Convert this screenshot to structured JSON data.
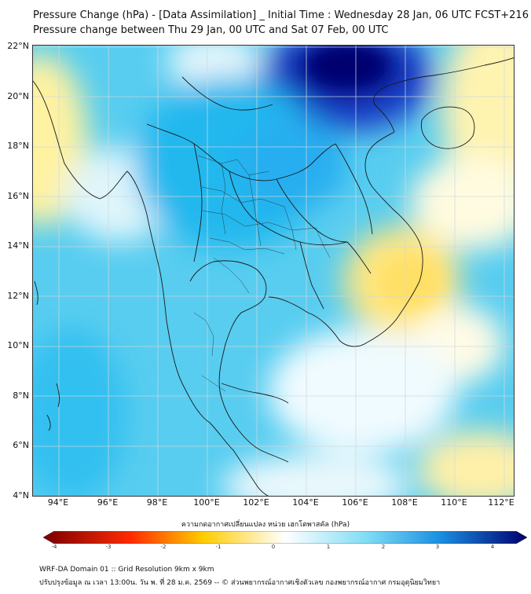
{
  "header": {
    "title_line1": "Pressure Change (hPa) - [Data Assimilation] _ Initial Time : Wednesday 28 Jan, 06 UTC FCST+216",
    "title_line2": "Pressure change between Thu 29 Jan, 00 UTC and Sat 07 Feb, 00 UTC"
  },
  "map": {
    "lat_labels": [
      "22°N",
      "20°N",
      "18°N",
      "16°N",
      "14°N",
      "12°N",
      "10°N",
      "8°N",
      "6°N",
      "4°N"
    ],
    "lon_labels": [
      "94°E",
      "96°E",
      "98°E",
      "100°E",
      "102°E",
      "104°E",
      "106°E",
      "108°E",
      "110°E",
      "112°E"
    ],
    "lat_range": [
      4,
      22
    ],
    "lon_range": [
      93,
      112.5
    ],
    "grid": true
  },
  "colorbar": {
    "title": "ความกดอากาศเปลี่ยนแปลง หน่วย เฮกโตพาสคัล (hPa)",
    "tick_labels": [
      "-4",
      "-3",
      "-2",
      "-1",
      "0",
      "1",
      "2",
      "3",
      "4"
    ],
    "range": [
      -4,
      4
    ],
    "colors": {
      "strong_negative": "#7a0000",
      "negative": "#ff2a00",
      "weak_negative": "#ffcc00",
      "neutral": "#ffffff",
      "weak_positive": "#7fdcf5",
      "positive": "#1a8fe0",
      "strong_positive": "#00006e"
    }
  },
  "footer": {
    "line1": "WRF-DA Domain 01 :: Grid Resolution 9km x 9km",
    "line2": "ปรับปรุงข้อมูล ณ เวลา 13:00น. วัน พ. ที่ 28 ม.ค. 2569 -- © ส่วนพยากรณ์อากาศเชิงตัวเลข กองพยากรณ์อากาศ กรมอุตุนิยมวิทยา"
  }
}
